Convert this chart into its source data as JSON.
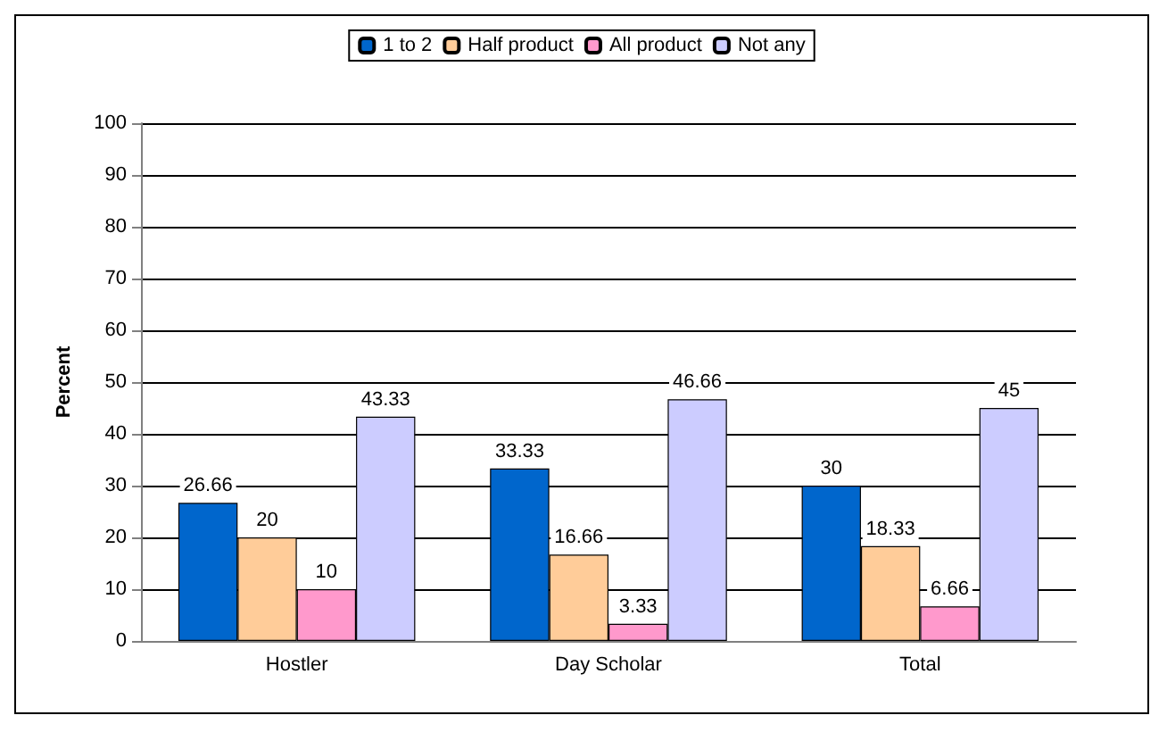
{
  "chart_data": {
    "type": "bar",
    "ylabel": "Percent",
    "categories": [
      "Hostler",
      "Day Scholar",
      "Total"
    ],
    "series": [
      {
        "name": "1 to 2",
        "color": "#0066cc",
        "values": [
          26.66,
          33.33,
          30
        ]
      },
      {
        "name": "Half product",
        "color": "#ffcc99",
        "values": [
          20,
          16.66,
          18.33
        ]
      },
      {
        "name": "All product",
        "color": "#ff99cc",
        "values": [
          10,
          3.33,
          6.66
        ]
      },
      {
        "name": "Not any",
        "color": "#ccccff",
        "values": [
          43.33,
          46.66,
          45
        ]
      }
    ],
    "ylim": [
      0,
      100
    ],
    "yticks": [
      0,
      10,
      20,
      30,
      40,
      50,
      60,
      70,
      80,
      90,
      100
    ],
    "grid": "y",
    "legend": "top",
    "data_labels": true
  }
}
